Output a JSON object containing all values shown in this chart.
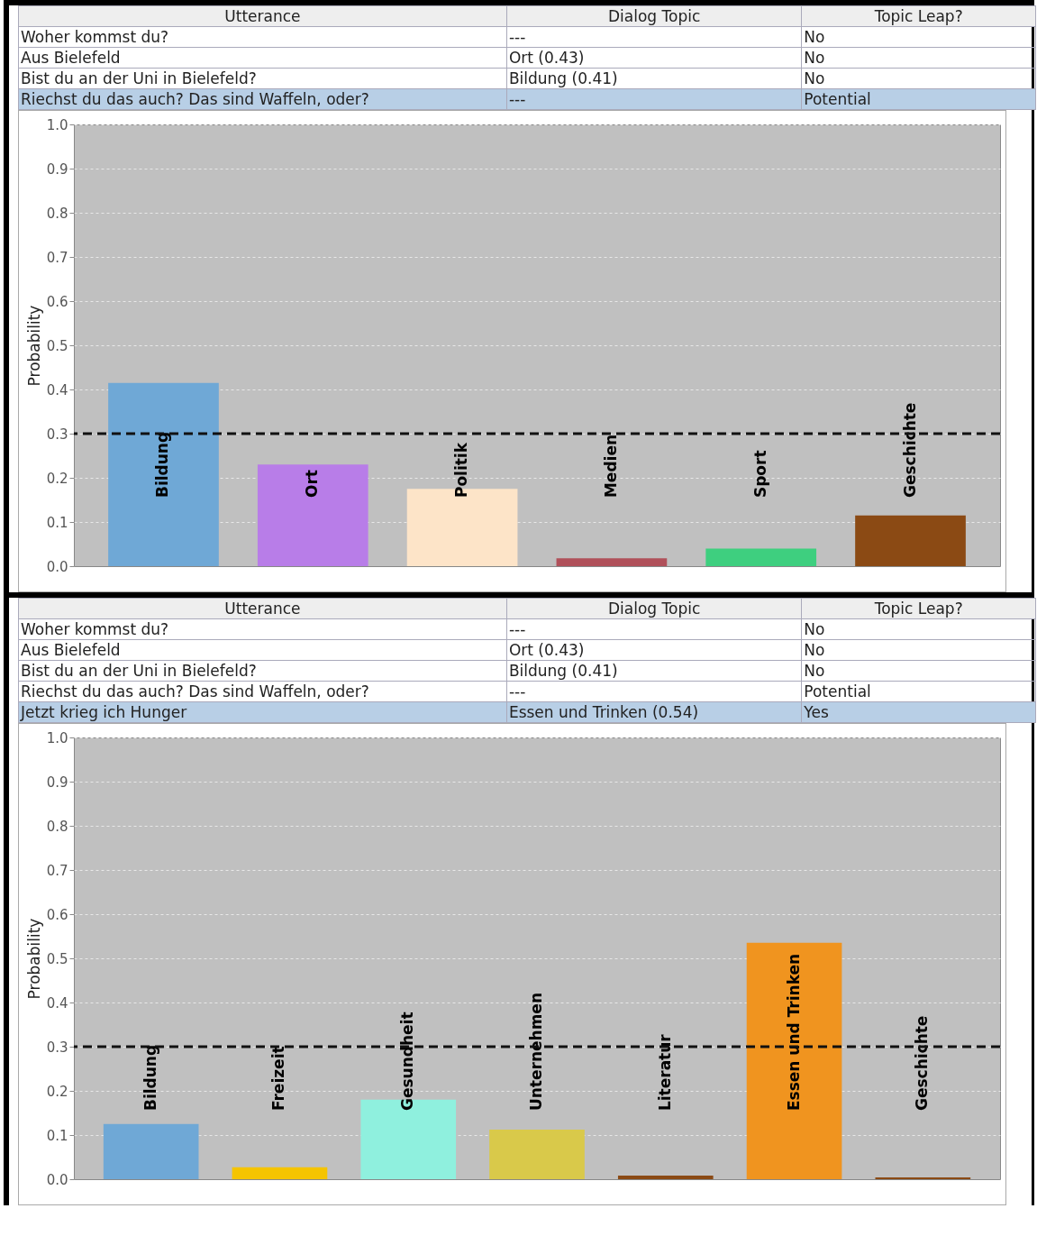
{
  "chart_data": [
    {
      "type": "other",
      "annotations": [
        "Utterance",
        "Dialog Topic",
        "Topic Leap?",
        "Woher kommst du?",
        "---",
        "No",
        "Aus Bielefeld",
        "Ort (0.43)",
        "No",
        "Bist du an der Uni in Bielefeld?",
        "Bildung (0.41)",
        "No",
        "Riechst du das auch? Das sind Waffeln, oder?",
        "---",
        "Potential"
      ]
    },
    {
      "type": "bar",
      "ylabel": "Probability",
      "categories": [
        "Bildung",
        "Ort",
        "Politik",
        "Medien",
        "Sport",
        "Geschichte"
      ],
      "values": [
        0.415,
        0.23,
        0.175,
        0.018,
        0.04,
        0.115
      ],
      "colors": [
        "#6fa8d6",
        "#b87de8",
        "#fde4c8",
        "#b0505a",
        "#3ecf7f",
        "#8b4a14"
      ],
      "ylim": [
        0,
        1
      ],
      "yticks": [
        {
          "value": 0,
          "label": "0.0"
        },
        {
          "value": 0.1,
          "label": "0.1"
        },
        {
          "value": 0.2,
          "label": "0.2"
        },
        {
          "value": 0.3,
          "label": "0.3"
        },
        {
          "value": 0.4,
          "label": "0.4"
        },
        {
          "value": 0.5,
          "label": "0.5"
        },
        {
          "value": 0.6,
          "label": "0.6"
        },
        {
          "value": 0.7,
          "label": "0.7"
        },
        {
          "value": 0.8,
          "label": "0.8"
        },
        {
          "value": 0.9,
          "label": "0.9"
        },
        {
          "value": 1,
          "label": "1.0"
        }
      ],
      "grid": "y",
      "ref_lines": [
        {
          "axis": "y",
          "value": 0.3,
          "color": "#111111",
          "line_style": "dashed"
        }
      ]
    },
    {
      "type": "other",
      "annotations": [
        "Utterance",
        "Dialog Topic",
        "Topic Leap?",
        "Woher kommst du?",
        "---",
        "No",
        "Aus Bielefeld",
        "Ort (0.43)",
        "No",
        "Bist du an der Uni in Bielefeld?",
        "Bildung (0.41)",
        "No",
        "Riechst du das auch? Das sind Waffeln, oder?",
        "---",
        "Potential",
        "Jetzt krieg ich Hunger",
        "Essen und Trinken (0.54)",
        "Yes"
      ]
    },
    {
      "type": "bar",
      "ylabel": "Probability",
      "categories": [
        "Bildung",
        "Freizeit",
        "Gesundheit",
        "Unternehmen",
        "Literatur",
        "Essen und Trinken",
        "Geschichte"
      ],
      "values": [
        0.125,
        0.027,
        0.18,
        0.112,
        0.008,
        0.535,
        0.004
      ],
      "colors": [
        "#6fa8d6",
        "#f5c400",
        "#8ff0de",
        "#d9c94a",
        "#8b4a14",
        "#f0941f",
        "#8b4a14"
      ],
      "ylim": [
        0,
        1
      ],
      "yticks": [
        {
          "value": 0,
          "label": "0.0"
        },
        {
          "value": 0.1,
          "label": "0.1"
        },
        {
          "value": 0.2,
          "label": "0.2"
        },
        {
          "value": 0.3,
          "label": "0.3"
        },
        {
          "value": 0.4,
          "label": "0.4"
        },
        {
          "value": 0.5,
          "label": "0.5"
        },
        {
          "value": 0.6,
          "label": "0.6"
        },
        {
          "value": 0.7,
          "label": "0.7"
        },
        {
          "value": 0.8,
          "label": "0.8"
        },
        {
          "value": 0.9,
          "label": "0.9"
        },
        {
          "value": 1,
          "label": "1.0"
        }
      ],
      "grid": "y",
      "ref_lines": [
        {
          "axis": "y",
          "value": 0.3,
          "color": "#111111",
          "line_style": "dashed"
        }
      ]
    }
  ]
}
